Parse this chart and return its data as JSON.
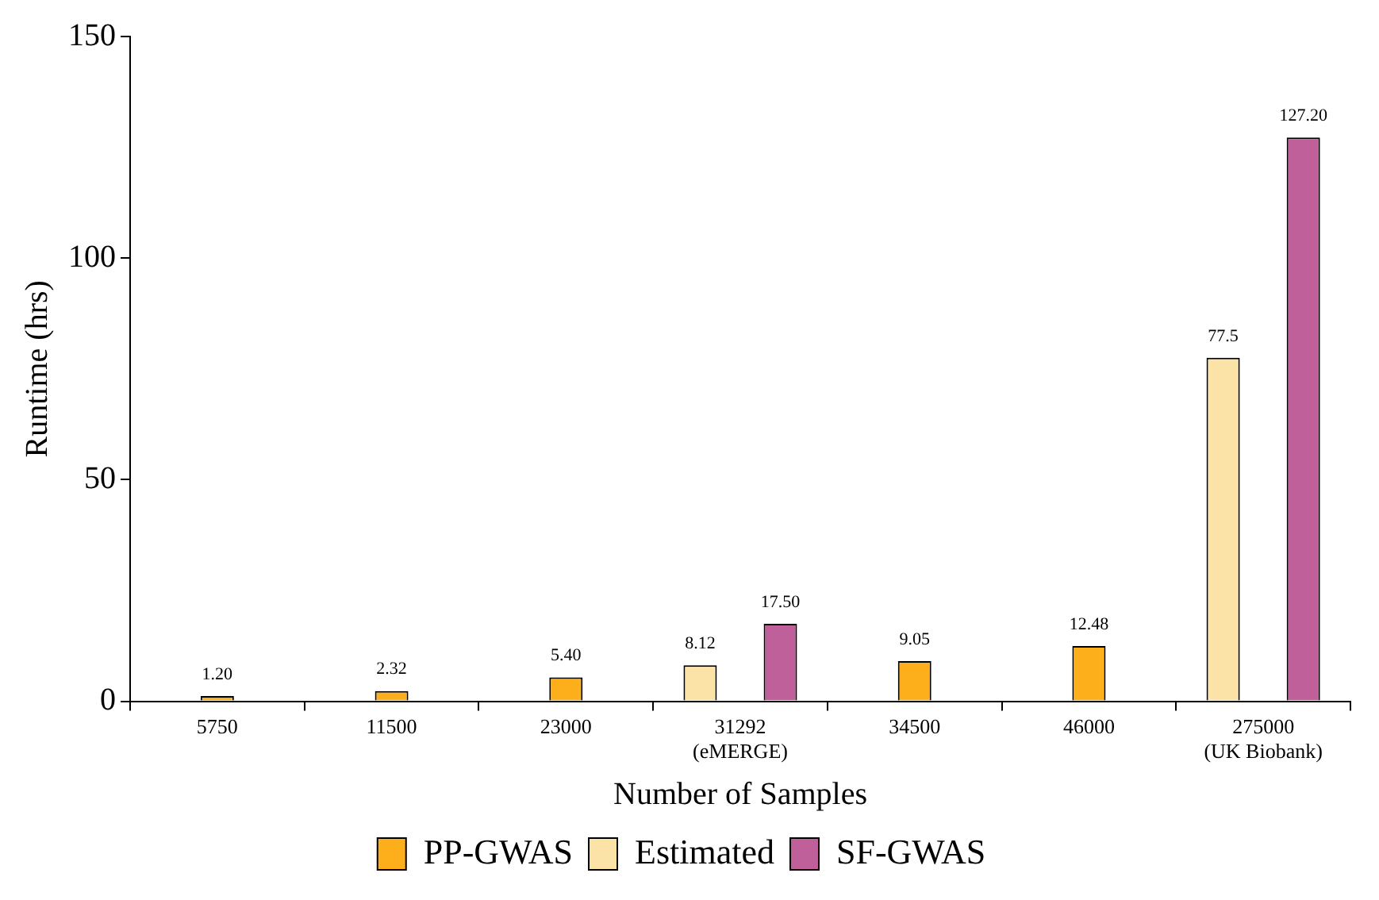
{
  "chart_data": {
    "type": "bar",
    "xlabel": "Number of Samples",
    "ylabel": "Runtime (hrs)",
    "categories": [
      "5750",
      "11500",
      "23000",
      "31292\n(eMERGE)",
      "34500",
      "46000",
      "275000\n(UK Biobank)"
    ],
    "ylim": [
      0,
      150
    ],
    "yticks": [
      0,
      50,
      100,
      150
    ],
    "grid": false,
    "legend": "bottom",
    "series": [
      {
        "name": "PP-GWAS",
        "color": "#fdae1b",
        "values": [
          1.2,
          2.32,
          5.4,
          null,
          9.05,
          12.48,
          null
        ],
        "value_labels": [
          "1.20",
          "2.32",
          "5.40",
          null,
          "9.05",
          "12.48",
          null
        ]
      },
      {
        "name": "Estimated",
        "color": "#fbe2a6",
        "values": [
          null,
          null,
          null,
          8.12,
          null,
          null,
          77.5
        ],
        "value_labels": [
          null,
          null,
          null,
          "8.12",
          null,
          null,
          "77.5"
        ]
      },
      {
        "name": "SF-GWAS",
        "color": "#c0609a",
        "values": [
          null,
          null,
          null,
          17.5,
          null,
          null,
          127.2
        ],
        "value_labels": [
          null,
          null,
          null,
          "17.50",
          null,
          null,
          "127.20"
        ]
      }
    ]
  }
}
